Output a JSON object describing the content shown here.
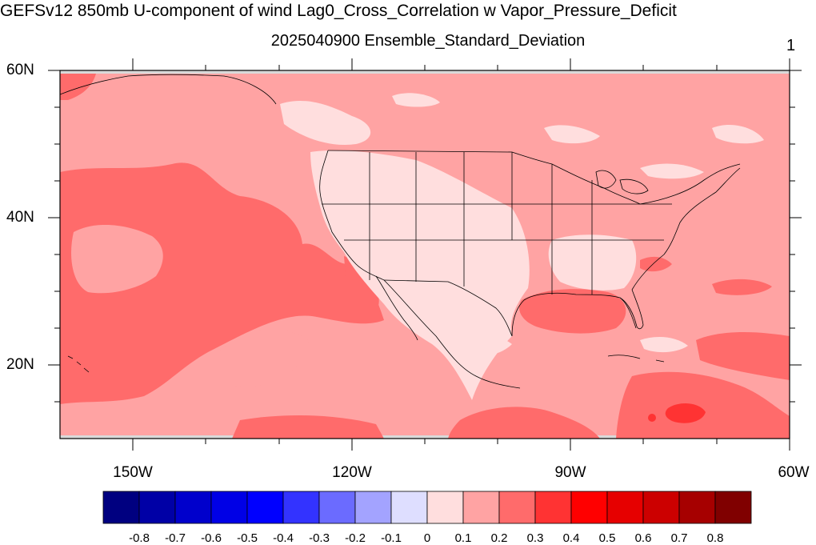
{
  "title": "GEFSv12 850mb U-component of wind Lag0_Cross_Correlation w Vapor_Pressure_Deficit",
  "subtitle": "2025040900 Ensemble_Standard_Deviation",
  "panel_number": "1",
  "map": {
    "projection": "cylindrical equidistant",
    "lon_range": [
      -160,
      -60
    ],
    "lat_range": [
      10,
      60
    ],
    "lat_labels": [
      "60N",
      "40N",
      "20N"
    ],
    "lon_labels": [
      "150W",
      "120W",
      "90W",
      "60W"
    ],
    "field_description_colors": {
      "background_level": "#ffa3a3",
      "low_level": "#ffdede",
      "mid_level": "#ff6b6b",
      "high_level": "#ff3333",
      "missing": "#d9d9d9"
    }
  },
  "colorbar": {
    "colors": [
      "#000080",
      "#0000a6",
      "#0000cc",
      "#0000e6",
      "#0000ff",
      "#3333ff",
      "#6b6bff",
      "#a3a3ff",
      "#dedeff",
      "#ffdede",
      "#ffa3a3",
      "#ff6b6b",
      "#ff3333",
      "#ff0000",
      "#e60000",
      "#cc0000",
      "#a60000",
      "#800000"
    ],
    "labels": [
      "-0.8",
      "-0.7",
      "-0.6",
      "-0.5",
      "-0.4",
      "-0.3",
      "-0.2",
      "-0.1",
      "0",
      "0.1",
      "0.2",
      "0.3",
      "0.4",
      "0.5",
      "0.6",
      "0.7",
      "0.8"
    ]
  }
}
